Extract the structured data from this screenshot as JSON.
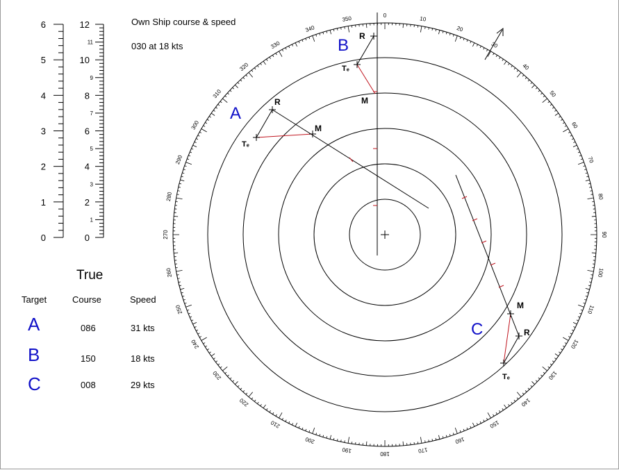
{
  "own_ship": {
    "title": "Own Ship course & speed",
    "value": "030 at 18 kts"
  },
  "speed_scale": {
    "left_max": 6,
    "right_max": 12,
    "left_labels": [
      "0",
      "1",
      "2",
      "3",
      "4",
      "5",
      "6"
    ],
    "right_labels": [
      "0",
      "1",
      "2",
      "3",
      "4",
      "5",
      "6",
      "7",
      "8",
      "9",
      "10",
      "11",
      "12"
    ]
  },
  "true_table": {
    "title": "True",
    "headers": {
      "target": "Target",
      "course": "Course",
      "speed": "Speed"
    },
    "rows": [
      {
        "target": "A",
        "course": "086",
        "speed": "31 kts"
      },
      {
        "target": "B",
        "course": "150",
        "speed": "18 kts"
      },
      {
        "target": "C",
        "course": "008",
        "speed": "29 kts"
      }
    ]
  },
  "plot": {
    "bearing_labels": [
      "0",
      "10",
      "20",
      "30",
      "40",
      "50",
      "60",
      "70",
      "80",
      "90",
      "100",
      "110",
      "120",
      "130",
      "140",
      "150",
      "160",
      "170",
      "180",
      "190",
      "200",
      "210",
      "220",
      "230",
      "240",
      "250",
      "260",
      "270",
      "280",
      "290",
      "300",
      "310",
      "320",
      "330",
      "340",
      "350"
    ],
    "range_rings": 5,
    "own_ship_heading_deg": 30,
    "targets": [
      {
        "name": "A",
        "labels": {
          "r": "R",
          "m": "M",
          "te": "Tₑ"
        }
      },
      {
        "name": "B",
        "labels": {
          "r": "R",
          "m": "M",
          "te": "Tₑ"
        }
      },
      {
        "name": "C",
        "labels": {
          "r": "R",
          "m": "M",
          "te": "Tₑ"
        }
      }
    ],
    "colors": {
      "lines": "#000000",
      "vectors": "#c0141e",
      "target_letters": "#1010c8"
    }
  }
}
